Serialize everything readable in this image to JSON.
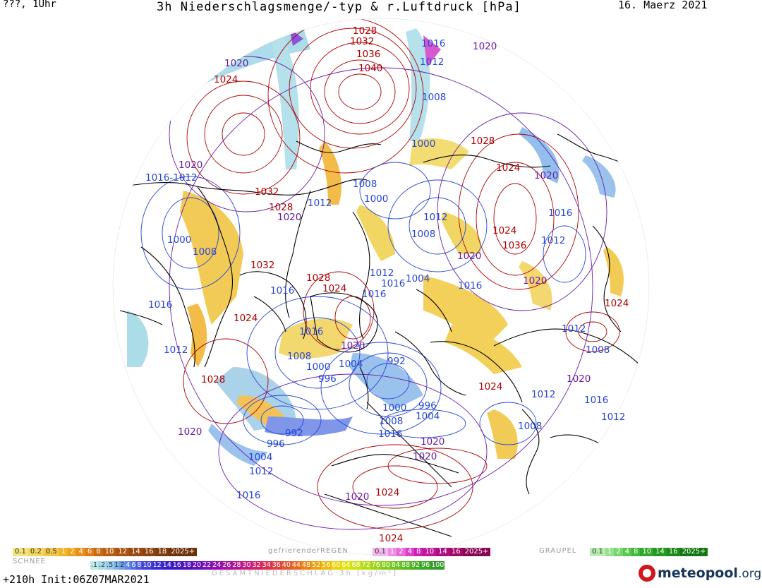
{
  "header": {
    "left": "???, 1Uhr",
    "title": "3h Niederschlagsmenge/-typ & r.Luftdruck [hPa]",
    "date": "16. Maerz 2021"
  },
  "footer": {
    "run": "+210h Init:06Z07MAR2021",
    "total_label": "GESAMTNIEDERSCHLAG 3h [kg/m²]",
    "logo_name": "meteopool",
    "logo_tld": ".org"
  },
  "legend": {
    "snow": {
      "label": "SCHNEE",
      "steps": [
        {
          "t": "0.1",
          "c": "#f4e27a"
        },
        {
          "t": "0.2",
          "c": "#f2d760"
        },
        {
          "t": "0.5",
          "c": "#eec74a"
        },
        {
          "t": "1",
          "c": "#f0b428"
        },
        {
          "t": "2",
          "c": "#eca21a"
        },
        {
          "t": "4",
          "c": "#e8901a"
        },
        {
          "t": "6",
          "c": "#df7a14"
        },
        {
          "t": "8",
          "c": "#c86a12"
        },
        {
          "t": "10",
          "c": "#b85e12"
        },
        {
          "t": "12",
          "c": "#a85410"
        },
        {
          "t": "14",
          "c": "#9a4a10"
        },
        {
          "t": "16",
          "c": "#8c420e"
        },
        {
          "t": "18",
          "c": "#7e3a0c"
        },
        {
          "t": "2025+",
          "c": "#6e320a"
        }
      ]
    },
    "freezing": {
      "label": "gefrierenderREGEN",
      "steps": [
        {
          "t": "0.1",
          "c": "#f2b8ee"
        },
        {
          "t": "1",
          "c": "#ec90e4"
        },
        {
          "t": "2",
          "c": "#e468da"
        },
        {
          "t": "4",
          "c": "#da3ec8"
        },
        {
          "t": "8",
          "c": "#cc20b2"
        },
        {
          "t": "10",
          "c": "#c01698"
        },
        {
          "t": "14",
          "c": "#b00e80"
        },
        {
          "t": "16",
          "c": "#a00a68"
        },
        {
          "t": "2025+",
          "c": "#880654"
        }
      ]
    },
    "graupel": {
      "label": "GRAUPEL",
      "steps": [
        {
          "t": "0.1",
          "c": "#b8ecb0"
        },
        {
          "t": "1",
          "c": "#98e090"
        },
        {
          "t": "2",
          "c": "#78d470"
        },
        {
          "t": "4",
          "c": "#58c850"
        },
        {
          "t": "8",
          "c": "#40b83a"
        },
        {
          "t": "10",
          "c": "#30a82c"
        },
        {
          "t": "14",
          "c": "#249820"
        },
        {
          "t": "16",
          "c": "#1c8818"
        },
        {
          "t": "2025+",
          "c": "#147812"
        }
      ]
    },
    "total": {
      "steps": [
        {
          "t": ".1",
          "c": "#bfe8e8"
        },
        {
          "t": ".2",
          "c": "#a8dcec"
        },
        {
          "t": ".5",
          "c": "#96cbe9"
        },
        {
          "t": "1",
          "c": "#7fb4ea"
        },
        {
          "t": "2",
          "c": "#6e9cea"
        },
        {
          "t": "4",
          "c": "#6086e6"
        },
        {
          "t": "6",
          "c": "#546ee2"
        },
        {
          "t": "8",
          "c": "#4a56dc"
        },
        {
          "t": "10",
          "c": "#4040d6"
        },
        {
          "t": "12",
          "c": "#3a2ed0"
        },
        {
          "t": "14",
          "c": "#3a1eca"
        },
        {
          "t": "16",
          "c": "#4016c4"
        },
        {
          "t": "18",
          "c": "#5010c0"
        },
        {
          "t": "20",
          "c": "#6410bc"
        },
        {
          "t": "22",
          "c": "#7a10b8"
        },
        {
          "t": "24",
          "c": "#9010b0"
        },
        {
          "t": "26",
          "c": "#a410a4"
        },
        {
          "t": "28",
          "c": "#b41494"
        },
        {
          "t": "30",
          "c": "#c41c80"
        },
        {
          "t": "32",
          "c": "#d0246a"
        },
        {
          "t": "34",
          "c": "#da3054"
        },
        {
          "t": "36",
          "c": "#e04040"
        },
        {
          "t": "40",
          "c": "#e45430"
        },
        {
          "t": "44",
          "c": "#e86a22"
        },
        {
          "t": "48",
          "c": "#ea8418"
        },
        {
          "t": "52",
          "c": "#eca010"
        },
        {
          "t": "56",
          "c": "#ecba0c"
        },
        {
          "t": "60",
          "c": "#ead20a"
        },
        {
          "t": "64",
          "c": "#e2e20a"
        },
        {
          "t": "68",
          "c": "#cce210"
        },
        {
          "t": "72",
          "c": "#b4dc14"
        },
        {
          "t": "76",
          "c": "#9cd418"
        },
        {
          "t": "80",
          "c": "#84cc1c"
        },
        {
          "t": "84",
          "c": "#6ec420"
        },
        {
          "t": "88",
          "c": "#5aba22"
        },
        {
          "t": "92",
          "c": "#48b024"
        },
        {
          "t": "96",
          "c": "#3ca626"
        },
        {
          "t": "100",
          "c": "#349c28"
        }
      ]
    }
  },
  "pressure_labels": [
    {
      "t": "1028",
      "c": "high"
    },
    {
      "t": "1032",
      "c": "high"
    },
    {
      "t": "1036",
      "c": "high"
    },
    {
      "t": "1040",
      "c": "high"
    },
    {
      "t": "1016",
      "c": "low"
    },
    {
      "t": "1012",
      "c": "low"
    },
    {
      "t": "1008",
      "c": "low"
    },
    {
      "t": "1020",
      "c": "mid"
    },
    {
      "t": "1020",
      "c": "mid"
    },
    {
      "t": "1024",
      "c": "high"
    },
    {
      "t": "1000",
      "c": "low"
    },
    {
      "t": "1020",
      "c": "mid"
    },
    {
      "t": "1028",
      "c": "high"
    },
    {
      "t": "1024",
      "c": "high"
    },
    {
      "t": "1020",
      "c": "mid"
    },
    {
      "t": "1016-1012",
      "c": "low"
    },
    {
      "t": "1032",
      "c": "high"
    },
    {
      "t": "1008",
      "c": "low"
    },
    {
      "t": "1000",
      "c": "low"
    },
    {
      "t": "1012",
      "c": "low"
    },
    {
      "t": "1028",
      "c": "high"
    },
    {
      "t": "1020",
      "c": "mid"
    },
    {
      "t": "1016",
      "c": "low"
    },
    {
      "t": "1012",
      "c": "low"
    },
    {
      "t": "1024",
      "c": "high"
    },
    {
      "t": "1008",
      "c": "low"
    },
    {
      "t": "1012",
      "c": "low"
    },
    {
      "t": "1000",
      "c": "low"
    },
    {
      "t": "1008",
      "c": "low"
    },
    {
      "t": "1036",
      "c": "high"
    },
    {
      "t": "1020",
      "c": "mid"
    },
    {
      "t": "1032",
      "c": "high"
    },
    {
      "t": "1028",
      "c": "high"
    },
    {
      "t": "1024",
      "c": "high"
    },
    {
      "t": "1012",
      "c": "low"
    },
    {
      "t": "1004",
      "c": "low"
    },
    {
      "t": "1016",
      "c": "low"
    },
    {
      "t": "1020",
      "c": "mid"
    },
    {
      "t": "1016",
      "c": "low"
    },
    {
      "t": "1016",
      "c": "low"
    },
    {
      "t": "1024",
      "c": "high"
    },
    {
      "t": "1016",
      "c": "low"
    },
    {
      "t": "1024",
      "c": "high"
    },
    {
      "t": "1012",
      "c": "low"
    },
    {
      "t": "1016",
      "c": "low"
    },
    {
      "t": "1008",
      "c": "low"
    },
    {
      "t": "1020",
      "c": "mid"
    },
    {
      "t": "1012",
      "c": "low"
    },
    {
      "t": "1028",
      "c": "high"
    },
    {
      "t": "1008",
      "c": "low"
    },
    {
      "t": "1000",
      "c": "low"
    },
    {
      "t": "996",
      "c": "low"
    },
    {
      "t": "1004",
      "c": "low"
    },
    {
      "t": "992",
      "c": "low"
    },
    {
      "t": "1020",
      "c": "mid"
    },
    {
      "t": "1024",
      "c": "high"
    },
    {
      "t": "1012",
      "c": "low"
    },
    {
      "t": "1016",
      "c": "low"
    },
    {
      "t": "1012",
      "c": "low"
    },
    {
      "t": "1000",
      "c": "low"
    },
    {
      "t": "996",
      "c": "low"
    },
    {
      "t": "1008",
      "c": "low"
    },
    {
      "t": "1004",
      "c": "low"
    },
    {
      "t": "1016",
      "c": "low"
    },
    {
      "t": "1008",
      "c": "low"
    },
    {
      "t": "1020",
      "c": "mid"
    },
    {
      "t": "992",
      "c": "low"
    },
    {
      "t": "996",
      "c": "low"
    },
    {
      "t": "1020",
      "c": "mid"
    },
    {
      "t": "1004",
      "c": "low"
    },
    {
      "t": "1020",
      "c": "mid"
    },
    {
      "t": "1024",
      "c": "high"
    },
    {
      "t": "1012",
      "c": "low"
    },
    {
      "t": "1016",
      "c": "low"
    },
    {
      "t": "1020",
      "c": "mid"
    },
    {
      "t": "1024",
      "c": "high"
    },
    {
      "t": "1016",
      "c": "low"
    }
  ],
  "colors": {
    "high": "#b00000",
    "low": "#2646d8",
    "mid": "#6a1aa8",
    "coast": "#000000",
    "ocean": "#ffffff"
  }
}
